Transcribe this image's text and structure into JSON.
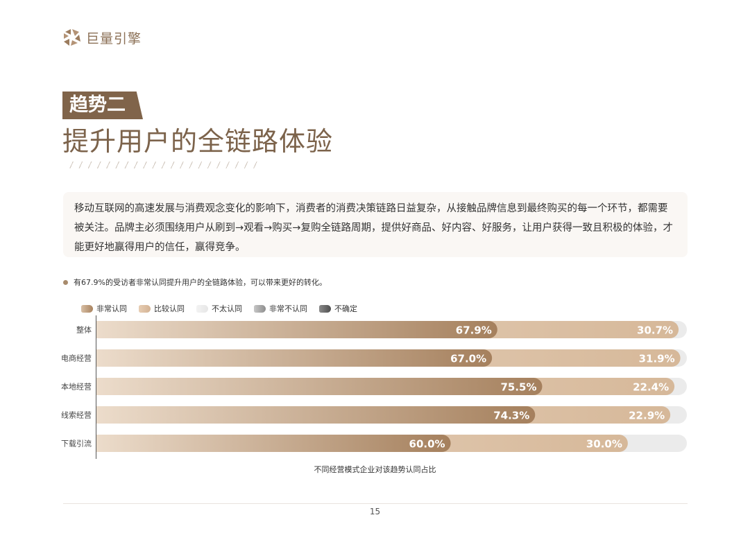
{
  "brand": {
    "name": "巨量引擎"
  },
  "header": {
    "tag": "趋势二",
    "title": "提升用户的全链路体验"
  },
  "intro": {
    "text": "移动互联网的高速发展与消费观念变化的影响下，消费者的消费决策链路日益复杂，从接触品牌信息到最终购买的每一个环节，都需要被关注。品牌主必须围绕用户从刷到→观看→购买→复购全链路周期，提供好商品、好内容、好服务，让用户获得一致且积极的体验，才能更好地赢得用户的信任，赢得竞争。"
  },
  "note": {
    "text": "有67.9%的受访者非常认同提升用户的全链路体验，可以带来更好的转化。"
  },
  "chart_data": {
    "type": "bar",
    "orientation": "horizontal",
    "stacked": true,
    "title": "不同经营模式企业对该趋势认同占比",
    "categories": [
      "整体",
      "电商经营",
      "本地经营",
      "线索经营",
      "下载引流"
    ],
    "series": [
      {
        "name": "非常认同",
        "values": [
          67.9,
          67.0,
          75.5,
          74.3,
          60.0
        ],
        "color": "#b4916f"
      },
      {
        "name": "比较认同",
        "values": [
          30.7,
          31.9,
          22.4,
          22.9,
          30.0
        ],
        "color": "#dcc0a4"
      },
      {
        "name": "不太认同",
        "values": [
          null,
          null,
          null,
          null,
          null
        ],
        "color": "#ebebeb"
      },
      {
        "name": "非常不认同",
        "values": [
          null,
          null,
          null,
          null,
          null
        ],
        "color": "#a9a9a9"
      },
      {
        "name": "不确定",
        "values": [
          null,
          null,
          null,
          null,
          null
        ],
        "color": "#6d6d6d"
      }
    ],
    "value_labels": [
      [
        "67.9%",
        "30.7%"
      ],
      [
        "67.0%",
        "31.9%"
      ],
      [
        "75.5%",
        "22.4%"
      ],
      [
        "74.3%",
        "22.9%"
      ],
      [
        "60.0%",
        "30.0%"
      ]
    ],
    "xlim": [
      0,
      100
    ],
    "legend_position": "top-left",
    "grid": false
  },
  "colors": {
    "brand": "#8c7157",
    "tag_bg": "#80644a",
    "title": "#7c634b",
    "track": "#ebebeb"
  },
  "page": {
    "number": "15"
  }
}
